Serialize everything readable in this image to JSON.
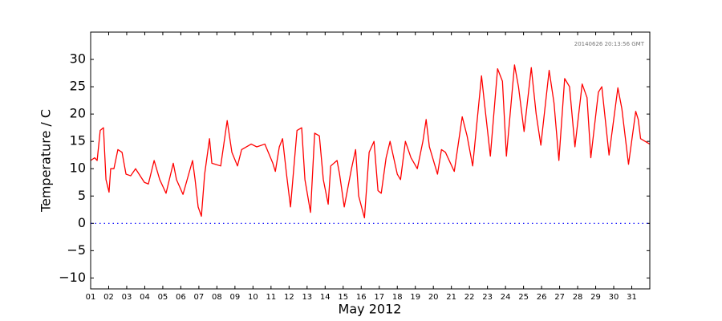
{
  "chart_data": {
    "type": "line",
    "xlabel": "May 2012",
    "ylabel": "Temperature / C",
    "annotation": "20140626 20:13:56 GMT",
    "xlim": [
      1,
      32
    ],
    "ylim": [
      -12,
      35
    ],
    "xticks": [
      {
        "value": 1,
        "label": "01"
      },
      {
        "value": 2,
        "label": "02"
      },
      {
        "value": 3,
        "label": "03"
      },
      {
        "value": 4,
        "label": "04"
      },
      {
        "value": 5,
        "label": "05"
      },
      {
        "value": 6,
        "label": "06"
      },
      {
        "value": 7,
        "label": "07"
      },
      {
        "value": 8,
        "label": "08"
      },
      {
        "value": 9,
        "label": "09"
      },
      10,
      11,
      12,
      13,
      14,
      15,
      16,
      17,
      18,
      19,
      20,
      21,
      22,
      23,
      24,
      25,
      26,
      27,
      28,
      29,
      30,
      31
    ],
    "yticks": [
      {
        "value": -10,
        "label": "−10"
      },
      {
        "value": -5,
        "label": "−5"
      },
      0,
      5,
      10,
      15,
      20,
      25,
      30
    ],
    "hline": {
      "value": 0,
      "color": "#0000ff"
    },
    "series": [
      {
        "color": "#ff0000",
        "x": [
          1.0,
          1.22,
          1.36,
          1.53,
          1.71,
          1.85,
          2.02,
          2.11,
          2.29,
          2.51,
          2.74,
          2.96,
          3.22,
          3.49,
          3.98,
          4.2,
          4.52,
          4.83,
          5.18,
          5.58,
          5.76,
          6.12,
          6.65,
          6.79,
          6.96,
          7.14,
          7.32,
          7.59,
          7.72,
          8.21,
          8.57,
          8.83,
          9.14,
          9.37,
          9.9,
          10.21,
          10.66,
          11.1,
          11.24,
          11.46,
          11.64,
          11.86,
          12.08,
          12.44,
          12.7,
          12.88,
          13.19,
          13.42,
          13.68,
          13.9,
          14.17,
          14.31,
          14.66,
          14.8,
          15.06,
          15.46,
          15.69,
          15.86,
          16.18,
          16.44,
          16.71,
          16.93,
          17.11,
          17.38,
          17.6,
          18.0,
          18.18,
          18.45,
          18.76,
          19.11,
          19.42,
          19.6,
          19.78,
          20.23,
          20.45,
          20.67,
          21.16,
          21.6,
          21.87,
          22.18,
          22.67,
          22.8,
          23.16,
          23.56,
          23.83,
          24.05,
          24.5,
          24.72,
          25.03,
          25.43,
          25.7,
          25.96,
          26.42,
          26.69,
          26.96,
          27.28,
          27.55,
          27.85,
          28.25,
          28.52,
          28.73,
          29.15,
          29.34,
          29.74,
          30.23,
          30.45,
          30.82,
          31.22,
          31.36,
          31.49,
          32.0
        ],
        "values": [
          11.5,
          12,
          11.5,
          17,
          17.5,
          8,
          5.7,
          10,
          10,
          13.5,
          13,
          9,
          8.7,
          10,
          7.5,
          7.2,
          11.5,
          8,
          5.5,
          11,
          8,
          5.3,
          11.5,
          8,
          3,
          1.3,
          9,
          15.5,
          11,
          10.5,
          18.8,
          13,
          10.5,
          13.5,
          14.5,
          14,
          14.5,
          11,
          9.5,
          14,
          15.5,
          9,
          3,
          17,
          17.5,
          8,
          2,
          16.5,
          16,
          8,
          3.5,
          10.5,
          11.5,
          9,
          3,
          10,
          13.5,
          5,
          1,
          13,
          15,
          6,
          5.5,
          12,
          15,
          9,
          8,
          15,
          12,
          10,
          15,
          19,
          14,
          9,
          13.5,
          13,
          9.5,
          19.5,
          16,
          10.5,
          27,
          23,
          12.3,
          28.3,
          26,
          12.3,
          29,
          25,
          16.8,
          28.5,
          20,
          14.3,
          28,
          22,
          11.5,
          26.5,
          25,
          14,
          25.5,
          23,
          12,
          24,
          25,
          12.5,
          24.8,
          21,
          10.8,
          20.5,
          19,
          15.5,
          14.5
        ]
      }
    ]
  }
}
